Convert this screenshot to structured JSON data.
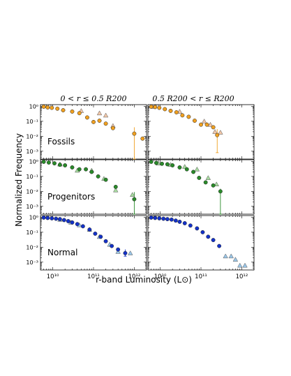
{
  "figure": {
    "ylabel": "Normalized Frequency",
    "xlabel": "r-band Luminosity (L⊙)",
    "column_titles": [
      "0 < r ≤ 0.5 R200",
      "0.5 R200 < r ≤ R200"
    ],
    "row_labels": [
      "Fossils",
      "Progenitors",
      "Normal"
    ],
    "x_tick_labels": [
      "10¹⁰",
      "10¹¹",
      "10¹²"
    ],
    "y_tick_labels": [
      "10⁰",
      "10⁻¹",
      "10⁻²",
      "10⁻³"
    ]
  },
  "chart_data": {
    "type": "scatter",
    "layout": "3 rows x 2 columns, shared axes",
    "x_scale": "log",
    "y_scale": "log",
    "xlim": [
      5000000000.0,
      2000000000000.0
    ],
    "ylim": [
      0.0003,
      1.3
    ],
    "xticks": [
      10000000000.0,
      100000000000.0,
      1000000000000.0
    ],
    "yticks": [
      1,
      0.1,
      0.01,
      0.001
    ],
    "marker_legend": {
      "circle": "filled",
      "triangle": "open/light"
    },
    "colors": {
      "Fossils": "#f0a020",
      "Progenitors": "#2a8a2a",
      "Normal": "#1432c8",
      "Fossils_tri": "#f2c7a8",
      "Progenitors_tri": "#a8dba0",
      "Normal_tri": "#9ac6e8"
    },
    "panels": [
      {
        "row": "Fossils",
        "column": 0,
        "circles": {
          "x": [
            6000000000.0,
            7500000000.0,
            9500000000.0,
            13000000000.0,
            18000000000.0,
            30000000000.0,
            45000000000.0,
            70000000000.0,
            100000000000.0,
            140000000000.0,
            200000000000.0,
            300000000000.0,
            1000000000000.0,
            1600000000000.0
          ],
          "y": [
            0.95,
            0.85,
            0.8,
            0.7,
            0.55,
            0.45,
            0.35,
            0.18,
            0.09,
            0.11,
            0.07,
            0.035,
            0.015,
            0.007
          ]
        },
        "triangles": {
          "x": [
            50000000000.0,
            140000000000.0,
            200000000000.0,
            300000000000.0
          ],
          "y": [
            0.5,
            0.35,
            0.25,
            0.05
          ]
        },
        "errorbars": [
          {
            "x": 1000000000000.0,
            "y": 0.015,
            "ylow": 0.0003,
            "yhigh": 0.04
          }
        ]
      },
      {
        "row": "Fossils",
        "column": 1,
        "circles": {
          "x": [
            6000000000.0,
            7500000000.0,
            9500000000.0,
            13000000000.0,
            18000000000.0,
            25000000000.0,
            35000000000.0,
            50000000000.0,
            70000000000.0,
            100000000000.0,
            140000000000.0,
            200000000000.0,
            250000000000.0
          ],
          "y": [
            0.95,
            0.9,
            0.8,
            0.65,
            0.5,
            0.4,
            0.25,
            0.2,
            0.11,
            0.06,
            0.06,
            0.04,
            0.012
          ]
        },
        "triangles": {
          "x": [
            7000000000.0,
            30000000000.0,
            120000000000.0,
            170000000000.0,
            220000000000.0,
            300000000000.0
          ],
          "y": [
            0.95,
            0.45,
            0.1,
            0.06,
            0.02,
            0.018
          ]
        },
        "errorbars": [
          {
            "x": 250000000000.0,
            "y": 0.012,
            "ylow": 0.0008,
            "yhigh": 0.03
          }
        ]
      },
      {
        "row": "Progenitors",
        "column": 0,
        "circles": {
          "x": [
            6000000000.0,
            8000000000.0,
            11000000000.0,
            15000000000.0,
            20000000000.0,
            30000000000.0,
            45000000000.0,
            65000000000.0,
            90000000000.0,
            130000000000.0,
            200000000000.0,
            350000000000.0,
            1000000000000.0
          ],
          "y": [
            0.95,
            0.85,
            0.75,
            0.6,
            0.55,
            0.4,
            0.3,
            0.3,
            0.2,
            0.1,
            0.06,
            0.02,
            0.003
          ]
        },
        "triangles": {
          "x": [
            15000000000.0,
            40000000000.0,
            90000000000.0,
            180000000000.0,
            350000000000.0,
            900000000000.0
          ],
          "y": [
            0.65,
            0.25,
            0.25,
            0.07,
            0.012,
            0.006
          ]
        },
        "errorbars": [
          {
            "x": 1000000000000.0,
            "y": 0.003,
            "ylow": 0.0003,
            "yhigh": 0.009
          }
        ]
      },
      {
        "row": "Progenitors",
        "column": 1,
        "circles": {
          "x": [
            6000000000.0,
            8000000000.0,
            11000000000.0,
            15000000000.0,
            20000000000.0,
            30000000000.0,
            45000000000.0,
            65000000000.0,
            90000000000.0,
            130000000000.0,
            200000000000.0,
            300000000000.0
          ],
          "y": [
            0.95,
            0.8,
            0.7,
            0.65,
            0.55,
            0.4,
            0.3,
            0.2,
            0.08,
            0.04,
            0.025,
            0.01
          ]
        },
        "triangles": {
          "x": [
            9000000000.0,
            18000000000.0,
            40000000000.0,
            80000000000.0,
            150000000000.0,
            240000000000.0
          ],
          "y": [
            0.75,
            0.6,
            0.45,
            0.3,
            0.08,
            0.03
          ]
        },
        "errorbars": [
          {
            "x": 300000000000.0,
            "y": 0.01,
            "ylow": 0.0003,
            "yhigh": 0.015
          }
        ]
      },
      {
        "row": "Normal",
        "column": 0,
        "circles": {
          "x": [
            6000000000.0,
            7500000000.0,
            9500000000.0,
            12000000000.0,
            15000000000.0,
            19000000000.0,
            24000000000.0,
            30000000000.0,
            40000000000.0,
            55000000000.0,
            80000000000.0,
            110000000000.0,
            150000000000.0,
            200000000000.0,
            280000000000.0,
            400000000000.0,
            600000000000.0
          ],
          "y": [
            0.95,
            0.9,
            0.85,
            0.8,
            0.75,
            0.65,
            0.55,
            0.45,
            0.35,
            0.25,
            0.15,
            0.08,
            0.05,
            0.025,
            0.012,
            0.007,
            0.004
          ]
        },
        "triangles": {
          "x": [
            15000000000.0,
            28000000000.0,
            45000000000.0,
            80000000000.0,
            140000000000.0,
            250000000000.0,
            400000000000.0,
            800000000000.0
          ],
          "y": [
            0.7,
            0.45,
            0.3,
            0.15,
            0.05,
            0.015,
            0.005,
            0.004
          ]
        },
        "errorbars": [
          {
            "x": 600000000000.0,
            "y": 0.004,
            "ylow": 0.0025,
            "yhigh": 0.007
          }
        ]
      },
      {
        "row": "Normal",
        "column": 1,
        "circles": {
          "x": [
            6000000000.0,
            7500000000.0,
            9500000000.0,
            12000000000.0,
            15000000000.0,
            19000000000.0,
            24000000000.0,
            30000000000.0,
            40000000000.0,
            55000000000.0,
            80000000000.0,
            110000000000.0,
            150000000000.0,
            200000000000.0,
            280000000000.0
          ],
          "y": [
            0.95,
            0.9,
            0.85,
            0.8,
            0.75,
            0.7,
            0.6,
            0.5,
            0.4,
            0.28,
            0.18,
            0.1,
            0.05,
            0.03,
            0.012
          ]
        },
        "triangles": {
          "x": [
            400000000000.0,
            550000000000.0,
            700000000000.0,
            900000000000.0,
            1200000000000.0
          ],
          "y": [
            0.0025,
            0.0025,
            0.0015,
            0.0006,
            0.0006
          ]
        },
        "errorbars": []
      }
    ]
  }
}
